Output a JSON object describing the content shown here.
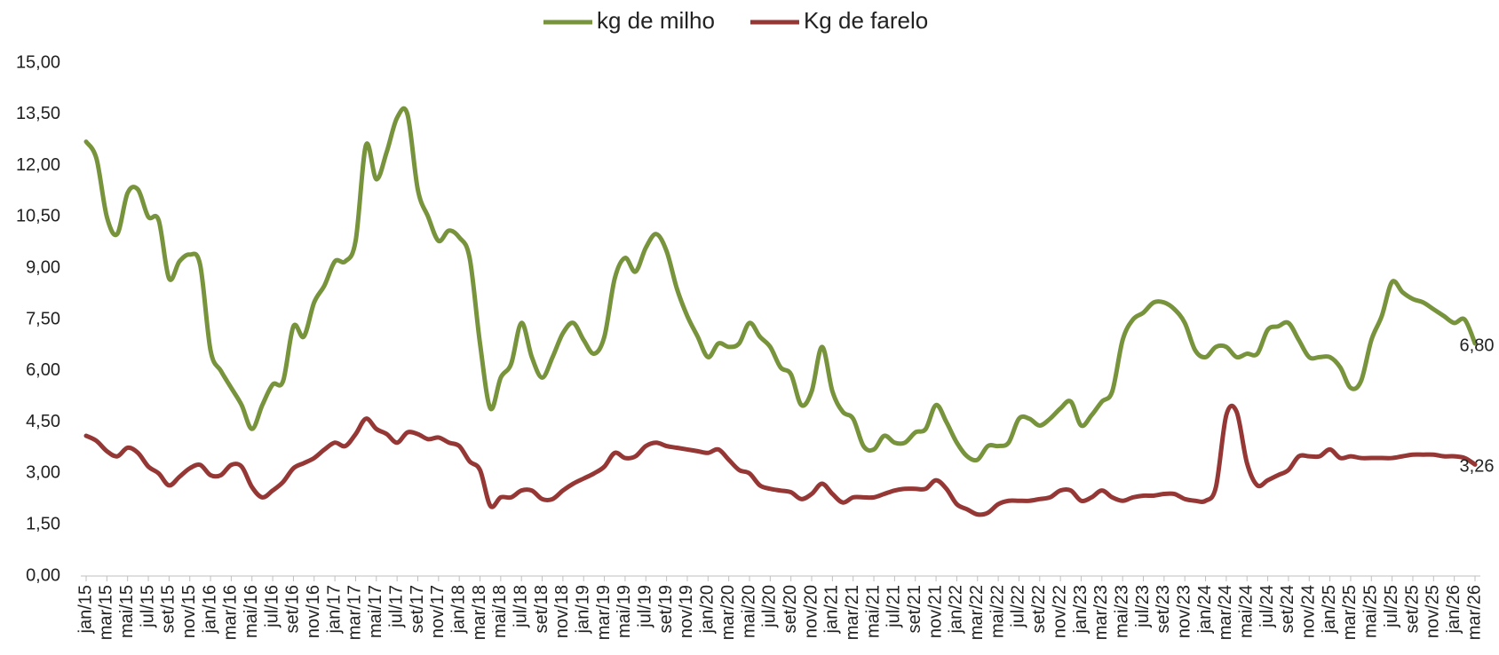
{
  "chart_data": {
    "type": "line",
    "categories": [
      "jan/15",
      null,
      "mar/15",
      null,
      "mai/15",
      null,
      "jul/15",
      null,
      "set/15",
      null,
      "nov/15",
      null,
      "jan/16",
      null,
      "mar/16",
      null,
      "mai/16",
      null,
      "jul/16",
      null,
      "set/16",
      null,
      "nov/16",
      null,
      "jan/17",
      null,
      "mar/17",
      null,
      "mai/17",
      null,
      "jul/17",
      null,
      "set/17",
      null,
      "nov/17",
      null,
      "jan/18",
      null,
      "mar/18",
      null,
      "mai/18",
      null,
      "jul/18",
      null,
      "set/18",
      null,
      "nov/18",
      null,
      "jan/19",
      null,
      "mar/19",
      null,
      "mai/19",
      null,
      "jul/19",
      null,
      "set/19",
      null,
      "nov/19",
      null,
      "jan/20",
      null,
      "mar/20",
      null,
      "mai/20",
      null,
      "jul/20",
      null,
      "set/20",
      null,
      "nov/20",
      null,
      "jan/21",
      null,
      "mar/21",
      null,
      "mai/21",
      null,
      "jul/21",
      null,
      "set/21",
      null,
      "nov/21",
      null,
      "jan/22",
      null,
      "mar/22",
      null,
      "mai/22",
      null,
      "jul/22",
      null,
      "set/22",
      null,
      "nov/22",
      null,
      "jan/23",
      null,
      "mar/23",
      null,
      "mai/23",
      null,
      "jul/23",
      null,
      "set/23",
      null,
      "nov/23",
      null,
      "jan/24",
      null,
      "mar/24",
      null,
      "mai/24",
      null,
      "jul/24",
      null,
      "set/24",
      null,
      "nov/24",
      null,
      "jan/25",
      null,
      "mar/25",
      null,
      "mai/25",
      null,
      "jul/25",
      null,
      "set/25",
      null,
      "nov/25",
      null,
      "jan/26",
      null,
      "mar/26"
    ],
    "series": [
      {
        "name": "kg de milho",
        "color": "#77933c",
        "values": [
          12.7,
          12.2,
          10.5,
          10.0,
          11.2,
          11.3,
          10.5,
          10.4,
          8.7,
          9.2,
          9.4,
          9.1,
          6.6,
          6.0,
          5.5,
          5.0,
          4.3,
          5.0,
          5.6,
          5.7,
          7.3,
          7.0,
          8.0,
          8.5,
          9.2,
          9.2,
          9.8,
          12.6,
          11.6,
          12.4,
          13.4,
          13.5,
          11.3,
          10.5,
          9.8,
          10.1,
          9.9,
          9.3,
          6.8,
          4.9,
          5.8,
          6.2,
          7.4,
          6.4,
          5.8,
          6.4,
          7.1,
          7.4,
          6.9,
          6.5,
          7.0,
          8.7,
          9.3,
          8.9,
          9.6,
          10.0,
          9.5,
          8.4,
          7.6,
          7.0,
          6.4,
          6.8,
          6.7,
          6.8,
          7.4,
          7.0,
          6.7,
          6.1,
          5.9,
          5.0,
          5.4,
          6.7,
          5.4,
          4.8,
          4.6,
          3.8,
          3.7,
          4.1,
          3.9,
          3.9,
          4.2,
          4.3,
          5.0,
          4.5,
          3.9,
          3.5,
          3.4,
          3.8,
          3.8,
          3.9,
          4.6,
          4.6,
          4.4,
          4.6,
          4.9,
          5.1,
          4.4,
          4.7,
          5.1,
          5.4,
          6.9,
          7.5,
          7.7,
          8.0,
          8.0,
          7.8,
          7.4,
          6.6,
          6.4,
          6.7,
          6.7,
          6.4,
          6.5,
          6.5,
          7.2,
          7.3,
          7.4,
          6.9,
          6.4,
          6.4,
          6.4,
          6.1,
          5.5,
          5.7,
          6.9,
          7.6,
          8.6,
          8.3,
          8.1,
          8.0,
          7.8,
          7.6,
          7.4,
          7.5,
          6.8
        ],
        "value_labels": [
          null,
          null,
          null,
          null,
          null,
          null,
          null,
          null,
          null,
          null,
          null,
          null,
          null,
          null,
          null,
          null,
          null,
          null,
          null,
          null,
          null,
          null,
          null,
          null,
          null,
          null,
          null,
          null,
          null,
          null,
          null,
          null,
          null,
          null,
          null,
          null,
          null,
          null,
          null,
          null,
          null,
          null,
          null,
          null,
          null,
          null,
          null,
          null,
          null,
          null,
          null,
          null,
          null,
          null,
          null,
          null,
          null,
          null,
          null,
          null,
          null,
          null,
          null,
          null,
          null,
          null,
          null,
          null,
          null,
          null,
          null,
          null,
          null,
          null,
          null,
          null,
          null,
          null,
          null,
          null,
          null,
          null,
          null,
          null,
          null,
          null,
          null,
          null,
          null,
          null,
          null,
          null,
          null,
          null,
          null,
          null,
          null,
          null,
          null,
          null,
          null,
          null,
          null,
          null,
          null,
          null,
          null,
          null,
          null,
          null,
          null,
          null,
          null,
          null,
          null,
          null,
          null,
          null,
          null,
          null,
          null,
          null,
          null,
          null,
          null,
          null,
          null,
          null,
          null,
          null,
          null,
          null,
          null,
          null,
          "6,80"
        ]
      },
      {
        "name": "Kg de farelo",
        "color": "#953735",
        "values": [
          4.1,
          3.95,
          3.65,
          3.5,
          3.75,
          3.6,
          3.2,
          3.0,
          2.65,
          2.9,
          3.15,
          3.25,
          2.95,
          2.95,
          3.25,
          3.2,
          2.6,
          2.3,
          2.5,
          2.75,
          3.15,
          3.3,
          3.45,
          3.7,
          3.9,
          3.8,
          4.15,
          4.6,
          4.3,
          4.15,
          3.9,
          4.2,
          4.15,
          4.0,
          4.05,
          3.9,
          3.8,
          3.35,
          3.1,
          2.05,
          2.3,
          2.3,
          2.5,
          2.5,
          2.25,
          2.25,
          2.5,
          2.7,
          2.85,
          3.0,
          3.2,
          3.6,
          3.45,
          3.5,
          3.8,
          3.9,
          3.8,
          3.75,
          3.7,
          3.65,
          3.6,
          3.7,
          3.4,
          3.1,
          3.0,
          2.65,
          2.55,
          2.5,
          2.45,
          2.25,
          2.4,
          2.7,
          2.4,
          2.15,
          2.3,
          2.3,
          2.3,
          2.4,
          2.5,
          2.55,
          2.55,
          2.55,
          2.8,
          2.55,
          2.1,
          1.95,
          1.8,
          1.85,
          2.1,
          2.2,
          2.2,
          2.2,
          2.25,
          2.3,
          2.5,
          2.5,
          2.2,
          2.3,
          2.5,
          2.3,
          2.2,
          2.3,
          2.35,
          2.35,
          2.4,
          2.4,
          2.25,
          2.2,
          2.2,
          2.6,
          4.7,
          4.8,
          3.3,
          2.65,
          2.8,
          2.95,
          3.1,
          3.5,
          3.5,
          3.5,
          3.7,
          3.45,
          3.5,
          3.45,
          3.45,
          3.45,
          3.45,
          3.5,
          3.55,
          3.55,
          3.55,
          3.5,
          3.5,
          3.45,
          3.26
        ],
        "value_labels": [
          null,
          null,
          null,
          null,
          null,
          null,
          null,
          null,
          null,
          null,
          null,
          null,
          null,
          null,
          null,
          null,
          null,
          null,
          null,
          null,
          null,
          null,
          null,
          null,
          null,
          null,
          null,
          null,
          null,
          null,
          null,
          null,
          null,
          null,
          null,
          null,
          null,
          null,
          null,
          null,
          null,
          null,
          null,
          null,
          null,
          null,
          null,
          null,
          null,
          null,
          null,
          null,
          null,
          null,
          null,
          null,
          null,
          null,
          null,
          null,
          null,
          null,
          null,
          null,
          null,
          null,
          null,
          null,
          null,
          null,
          null,
          null,
          null,
          null,
          null,
          null,
          null,
          null,
          null,
          null,
          null,
          null,
          null,
          null,
          null,
          null,
          null,
          null,
          null,
          null,
          null,
          null,
          null,
          null,
          null,
          null,
          null,
          null,
          null,
          null,
          null,
          null,
          null,
          null,
          null,
          null,
          null,
          null,
          null,
          null,
          null,
          null,
          null,
          null,
          null,
          null,
          null,
          null,
          null,
          null,
          null,
          null,
          null,
          null,
          null,
          null,
          null,
          null,
          null,
          null,
          null,
          null,
          null,
          null,
          "3,26"
        ]
      }
    ],
    "ylim": [
      0,
      15
    ],
    "yticks": [
      {
        "value": 0,
        "label": "0,00"
      },
      {
        "value": 1.5,
        "label": "1,50"
      },
      {
        "value": 3,
        "label": "3,00"
      },
      {
        "value": 4.5,
        "label": "4,50"
      },
      {
        "value": 6,
        "label": "6,00"
      },
      {
        "value": 7.5,
        "label": "7,50"
      },
      {
        "value": 9,
        "label": "9,00"
      },
      {
        "value": 10.5,
        "label": "10,50"
      },
      {
        "value": 12,
        "label": "12,00"
      },
      {
        "value": 13.5,
        "label": "13,50"
      },
      {
        "value": 15,
        "label": "15,00"
      }
    ],
    "legend": "top",
    "grid": false
  }
}
